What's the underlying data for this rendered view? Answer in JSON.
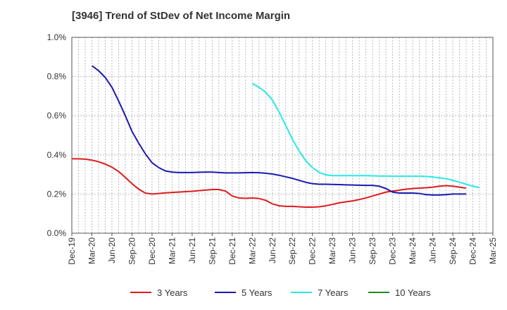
{
  "chart_data": {
    "type": "line",
    "title": "[3946]  Trend of StDev of Net Income Margin",
    "xlabel": "",
    "ylabel": "",
    "x_ticks": [
      "Dec-19",
      "Mar-20",
      "Jun-20",
      "Sep-20",
      "Dec-20",
      "Mar-21",
      "Jun-21",
      "Sep-21",
      "Dec-21",
      "Mar-22",
      "Jun-22",
      "Sep-22",
      "Dec-22",
      "Mar-23",
      "Jun-23",
      "Sep-23",
      "Dec-23",
      "Mar-24",
      "Jun-24",
      "Sep-24",
      "Dec-24",
      "Mar-25"
    ],
    "y_ticks": [
      "0.0%",
      "0.2%",
      "0.4%",
      "0.6%",
      "0.8%",
      "1.0%"
    ],
    "ylim": [
      0,
      1.0
    ],
    "grid": true,
    "legend_position": "bottom",
    "series": [
      {
        "name": "3 Years",
        "color": "#dd1c1c",
        "start_index": 0,
        "values": [
          0.38,
          0.38,
          0.378,
          0.373,
          0.365,
          0.353,
          0.337,
          0.315,
          0.285,
          0.253,
          0.225,
          0.205,
          0.2,
          0.203,
          0.206,
          0.208,
          0.21,
          0.212,
          0.214,
          0.217,
          0.22,
          0.223,
          0.223,
          0.215,
          0.19,
          0.18,
          0.178,
          0.18,
          0.177,
          0.168,
          0.15,
          0.14,
          0.137,
          0.137,
          0.135,
          0.133,
          0.133,
          0.135,
          0.14,
          0.147,
          0.155,
          0.16,
          0.165,
          0.172,
          0.18,
          0.19,
          0.2,
          0.21,
          0.215,
          0.22,
          0.225,
          0.228,
          0.23,
          0.232,
          0.235,
          0.24,
          0.243,
          0.24,
          0.235,
          0.23
        ]
      },
      {
        "name": "5 Years",
        "color": "#1a1aae",
        "start_index": 3,
        "values": [
          0.855,
          0.83,
          0.795,
          0.745,
          0.675,
          0.6,
          0.52,
          0.46,
          0.405,
          0.36,
          0.335,
          0.318,
          0.312,
          0.31,
          0.31,
          0.31,
          0.311,
          0.312,
          0.312,
          0.31,
          0.308,
          0.308,
          0.308,
          0.309,
          0.31,
          0.309,
          0.306,
          0.302,
          0.296,
          0.288,
          0.28,
          0.27,
          0.26,
          0.253,
          0.25,
          0.25,
          0.249,
          0.248,
          0.247,
          0.246,
          0.245,
          0.244,
          0.244,
          0.24,
          0.228,
          0.21,
          0.205,
          0.205,
          0.205,
          0.203,
          0.197,
          0.195,
          0.195,
          0.197,
          0.2,
          0.2,
          0.2
        ]
      },
      {
        "name": "7 Years",
        "color": "#28e8e8",
        "start_index": 27,
        "values": [
          0.765,
          0.745,
          0.72,
          0.68,
          0.62,
          0.55,
          0.48,
          0.42,
          0.37,
          0.335,
          0.31,
          0.298,
          0.294,
          0.294,
          0.294,
          0.294,
          0.294,
          0.294,
          0.293,
          0.292,
          0.292,
          0.291,
          0.291,
          0.291,
          0.291,
          0.291,
          0.29,
          0.287,
          0.283,
          0.278,
          0.27,
          0.26,
          0.25,
          0.24,
          0.233
        ]
      },
      {
        "name": "10 Years",
        "color": "#1e8c1e",
        "start_index": 0,
        "values": []
      }
    ]
  }
}
